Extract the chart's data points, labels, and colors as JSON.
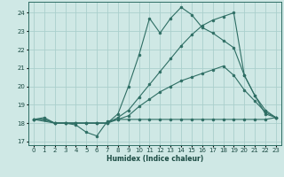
{
  "xlabel": "Humidex (Indice chaleur)",
  "background_color": "#cfe8e5",
  "grid_color": "#aacfcc",
  "line_color": "#2e6e64",
  "xlim": [
    -0.5,
    23.5
  ],
  "ylim": [
    16.8,
    24.6
  ],
  "yticks": [
    17,
    18,
    19,
    20,
    21,
    22,
    23,
    24
  ],
  "xticks": [
    0,
    1,
    2,
    3,
    4,
    5,
    6,
    7,
    8,
    9,
    10,
    11,
    12,
    13,
    14,
    15,
    16,
    17,
    18,
    19,
    20,
    21,
    22,
    23
  ],
  "series": [
    {
      "x": [
        0,
        1,
        2,
        3,
        4,
        5,
        6,
        7,
        8,
        9,
        10,
        11,
        12,
        13,
        14,
        15,
        16,
        17,
        18,
        19,
        20,
        21,
        22,
        23
      ],
      "y": [
        18.2,
        18.3,
        18.0,
        18.0,
        17.9,
        17.5,
        17.3,
        18.1,
        18.2,
        18.2,
        18.2,
        18.2,
        18.2,
        18.2,
        18.2,
        18.2,
        18.2,
        18.2,
        18.2,
        18.2,
        18.2,
        18.2,
        18.2,
        18.3
      ]
    },
    {
      "x": [
        0,
        1,
        2,
        3,
        4,
        5,
        6,
        7,
        8,
        9,
        10,
        11,
        12,
        13,
        14,
        15,
        16,
        17,
        18,
        19,
        20,
        21,
        22,
        23
      ],
      "y": [
        18.2,
        18.2,
        18.0,
        18.0,
        18.0,
        18.0,
        18.0,
        18.0,
        18.2,
        18.4,
        18.9,
        19.3,
        19.7,
        20.0,
        20.3,
        20.5,
        20.7,
        20.9,
        21.1,
        20.6,
        19.8,
        19.2,
        18.6,
        18.3
      ]
    },
    {
      "x": [
        0,
        1,
        2,
        3,
        4,
        5,
        6,
        7,
        8,
        9,
        10,
        11,
        12,
        13,
        14,
        15,
        16,
        17,
        18,
        19,
        20,
        21,
        22,
        23
      ],
      "y": [
        18.2,
        18.2,
        18.0,
        18.0,
        18.0,
        18.0,
        18.0,
        18.0,
        18.3,
        18.7,
        19.4,
        20.1,
        20.8,
        21.5,
        22.2,
        22.8,
        23.3,
        23.6,
        23.8,
        24.0,
        20.6,
        19.5,
        18.5,
        18.3
      ]
    },
    {
      "x": [
        0,
        2,
        3,
        4,
        5,
        6,
        7,
        8,
        9,
        10,
        11,
        12,
        13,
        14,
        15,
        16,
        17,
        18,
        19,
        20,
        21,
        22,
        23
      ],
      "y": [
        18.2,
        18.0,
        18.0,
        18.0,
        18.0,
        18.0,
        18.0,
        18.5,
        20.0,
        21.7,
        23.7,
        22.9,
        23.7,
        24.3,
        23.9,
        23.2,
        22.9,
        22.5,
        22.1,
        20.6,
        19.5,
        18.7,
        18.3
      ]
    }
  ]
}
